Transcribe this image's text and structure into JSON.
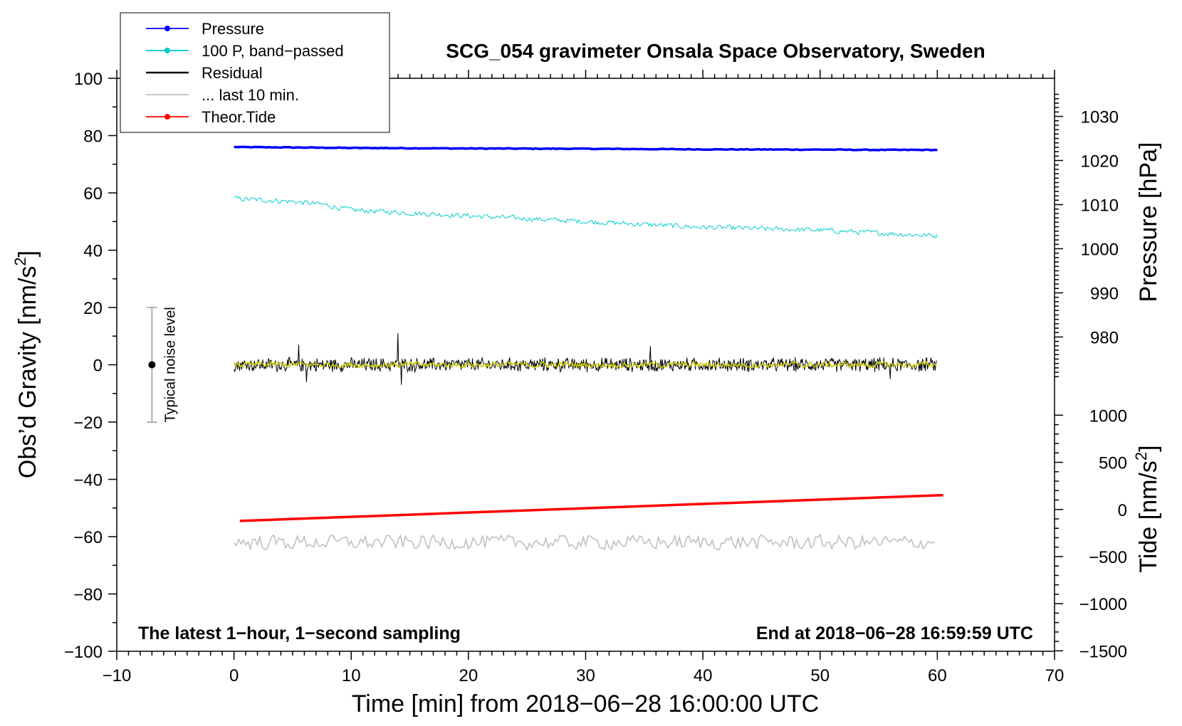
{
  "chart_data": {
    "type": "line",
    "title": "SCG_054 gravimeter Onsala Space Observatory, Sweden",
    "xlabel": "Time [min] from 2018−06−28 16:00:00 UTC",
    "ylabel": "Obs’d Gravity [nm/s²]",
    "ylabel_parts": {
      "main": "Obs’d Gravity [nm/s",
      "sup": "2",
      "close": "]"
    },
    "y2label": "Pressure [hPa]",
    "y3label_parts": {
      "main": "Tide [nm/s",
      "sup": "2",
      "close": "]"
    },
    "xlim": [
      -10,
      70
    ],
    "ylim": [
      -100,
      100
    ],
    "xticks": [
      -10,
      0,
      10,
      20,
      30,
      40,
      50,
      60,
      70
    ],
    "xtick_labels": [
      "−10",
      "0",
      "10",
      "20",
      "30",
      "40",
      "50",
      "60",
      "70"
    ],
    "yticks": [
      -100,
      -80,
      -60,
      -40,
      -20,
      0,
      20,
      40,
      60,
      80,
      100
    ],
    "ytick_labels": [
      "−100",
      "−80",
      "−60",
      "−40",
      "−20",
      "0",
      "20",
      "40",
      "60",
      "80",
      "100"
    ],
    "pressure_axis": {
      "ticks": [
        980,
        990,
        1000,
        1010,
        1020,
        1030
      ],
      "tick_labels": [
        "980",
        "990",
        "1000",
        "1010",
        "1020",
        "1030"
      ],
      "gravity_at_1000": 40.5,
      "gravity_per_hpa": 1.54
    },
    "tide_axis": {
      "ticks": [
        -1500,
        -1000,
        -500,
        0,
        500,
        1000
      ],
      "tick_labels": [
        "−1500",
        "−1000",
        "−500",
        "0",
        "500",
        "1000"
      ],
      "gravity_at_0": -50.5,
      "gravity_per_unit": 0.0329
    },
    "series": [
      {
        "name": "Pressure",
        "color": "#0000ff",
        "style": "line-dot",
        "points": [
          [
            0,
            76
          ],
          [
            10,
            75.7
          ],
          [
            20,
            75.5
          ],
          [
            30,
            75.4
          ],
          [
            40,
            75.2
          ],
          [
            50,
            75.1
          ],
          [
            55,
            75
          ],
          [
            60,
            75
          ]
        ]
      },
      {
        "name": "100 P, band−passed",
        "color": "#00cccc",
        "style": "line-dot",
        "points": [
          [
            0,
            58
          ],
          [
            5,
            57
          ],
          [
            7.5,
            56
          ],
          [
            10,
            54
          ],
          [
            15,
            53
          ],
          [
            20,
            52
          ],
          [
            25,
            51
          ],
          [
            30,
            50
          ],
          [
            35,
            49
          ],
          [
            40,
            48
          ],
          [
            45,
            47.5
          ],
          [
            50,
            47
          ],
          [
            55,
            46
          ],
          [
            60,
            45
          ]
        ]
      },
      {
        "name": "Residual",
        "color": "#000000",
        "style": "line",
        "center": 0,
        "amplitude": 2.2,
        "spikes": [
          [
            14,
            11
          ],
          [
            14.3,
            -7
          ],
          [
            5.5,
            7
          ],
          [
            6.2,
            -6
          ],
          [
            35.5,
            6.5
          ],
          [
            56,
            -5
          ]
        ]
      },
      {
        "name": "... last 10 min.",
        "color": "#c0c0c0",
        "style": "line",
        "center": -62,
        "amplitude": 2.2
      },
      {
        "name": "Theor.Tide",
        "color": "#ff0000",
        "style": "line-dot",
        "points": [
          [
            0.5,
            -54.5
          ],
          [
            60.5,
            -45.5
          ]
        ]
      }
    ],
    "overlay_series": {
      "name": "smoothed residual",
      "color": "#cccc00"
    },
    "noise_bar": {
      "label": "Typical noise level",
      "x": -7,
      "center": 0,
      "low": -20,
      "high": 20
    },
    "annotations": {
      "left": "The latest 1−hour, 1−second sampling",
      "right": "End at 2018−06−28 16:59:59 UTC"
    },
    "legend_position": "top-left"
  }
}
